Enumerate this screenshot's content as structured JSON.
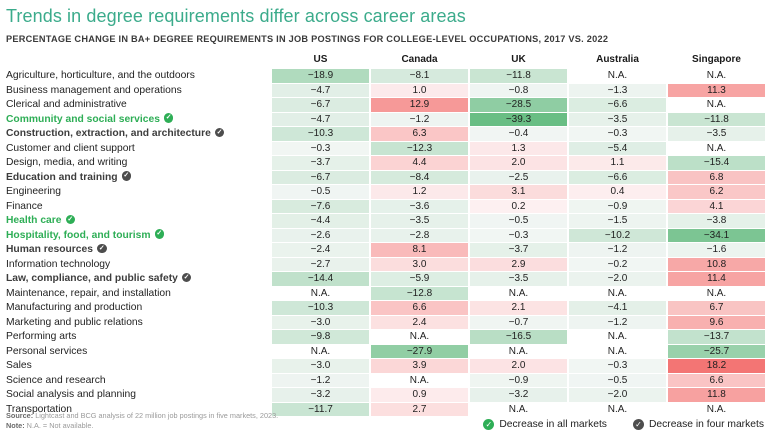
{
  "title": "Trends in degree requirements differ across career areas",
  "subtitle": "PERCENTAGE CHANGE IN BA+ DEGREE REQUIREMENTS IN JOB POSTINGS FOR COLLEGE-LEVEL OCCUPATIONS, 2017 VS. 2022",
  "table": {
    "columns": [
      "US",
      "Canada",
      "UK",
      "Australia",
      "Singapore"
    ],
    "rows": [
      {
        "label": "Agriculture, horticulture, and the outdoors",
        "badge": null,
        "values": [
          "-18.9",
          "-8.1",
          "-11.8",
          "N.A.",
          "N.A."
        ]
      },
      {
        "label": "Business management and operations",
        "badge": null,
        "values": [
          "-4.7",
          "1.0",
          "-0.8",
          "-1.3",
          "11.3"
        ]
      },
      {
        "label": "Clerical and administrative",
        "badge": null,
        "values": [
          "-6.7",
          "12.9",
          "-28.5",
          "-6.6",
          "N.A."
        ]
      },
      {
        "label": "Community and social services",
        "badge": "all",
        "values": [
          "-4.7",
          "-1.2",
          "-39.3",
          "-3.5",
          "-11.8"
        ]
      },
      {
        "label": "Construction, extraction, and architecture",
        "badge": "four",
        "values": [
          "-10.3",
          "6.3",
          "-0.4",
          "-0.3",
          "-3.5"
        ]
      },
      {
        "label": "Customer and client support",
        "badge": null,
        "values": [
          "-0.3",
          "-12.3",
          "1.3",
          "-5.4",
          "N.A."
        ]
      },
      {
        "label": "Design, media, and writing",
        "badge": null,
        "values": [
          "-3.7",
          "4.4",
          "2.0",
          "1.1",
          "-15.4"
        ]
      },
      {
        "label": "Education and training",
        "badge": "four",
        "values": [
          "-6.7",
          "-8.4",
          "-2.5",
          "-6.6",
          "6.8"
        ]
      },
      {
        "label": "Engineering",
        "badge": null,
        "values": [
          "-0.5",
          "1.2",
          "3.1",
          "0.4",
          "6.2"
        ]
      },
      {
        "label": "Finance",
        "badge": null,
        "values": [
          "-7.6",
          "-3.6",
          "0.2",
          "-0.9",
          "4.1"
        ]
      },
      {
        "label": "Health care",
        "badge": "all",
        "values": [
          "-4.4",
          "-3.5",
          "-0.5",
          "-1.5",
          "-3.8"
        ]
      },
      {
        "label": "Hospitality, food, and tourism",
        "badge": "all",
        "values": [
          "-2.6",
          "-2.8",
          "-0.3",
          "-10.2",
          "-34.1"
        ]
      },
      {
        "label": "Human resources",
        "badge": "four",
        "values": [
          "-2.4",
          "8.1",
          "-3.7",
          "-1.2",
          "-1.6"
        ]
      },
      {
        "label": "Information technology",
        "badge": null,
        "values": [
          "-2.7",
          "3.0",
          "2.9",
          "-0.2",
          "10.8"
        ]
      },
      {
        "label": "Law, compliance, and public safety",
        "badge": "four",
        "values": [
          "-14.4",
          "-5.9",
          "-3.5",
          "-2.0",
          "11.4"
        ]
      },
      {
        "label": "Maintenance, repair, and installation",
        "badge": null,
        "values": [
          "N.A.",
          "-12.8",
          "N.A.",
          "N.A.",
          "N.A."
        ]
      },
      {
        "label": "Manufacturing and production",
        "badge": null,
        "values": [
          "-10.3",
          "6.6",
          "2.1",
          "-4.1",
          "6.7"
        ]
      },
      {
        "label": "Marketing and public relations",
        "badge": null,
        "values": [
          "-3.0",
          "2.4",
          "-0.7",
          "-1.2",
          "9.6"
        ]
      },
      {
        "label": "Performing arts",
        "badge": null,
        "values": [
          "-9.8",
          "N.A.",
          "-16.5",
          "N.A.",
          "-13.7"
        ]
      },
      {
        "label": "Personal services",
        "badge": null,
        "values": [
          "N.A.",
          "-27.9",
          "N.A.",
          "N.A.",
          "-25.7"
        ]
      },
      {
        "label": "Sales",
        "badge": null,
        "values": [
          "-3.0",
          "3.9",
          "2.0",
          "-0.3",
          "18.2"
        ]
      },
      {
        "label": "Science and research",
        "badge": null,
        "values": [
          "-1.2",
          "N.A.",
          "-0.9",
          "-0.5",
          "6.6"
        ]
      },
      {
        "label": "Social analysis and planning",
        "badge": null,
        "values": [
          "-3.2",
          "0.9",
          "-3.2",
          "-2.0",
          "11.8"
        ]
      },
      {
        "label": "Transportation",
        "badge": null,
        "values": [
          "-11.7",
          "2.7",
          "N.A.",
          "N.A.",
          "N.A."
        ]
      }
    ]
  },
  "legend": [
    {
      "icon": "check-circle-green",
      "label": "Decrease in all markets"
    },
    {
      "icon": "check-circle-dark",
      "label": "Decrease in four markets"
    }
  ],
  "footer": {
    "source_label": "Source:",
    "source_text": " Lightcast and BCG analysis of 22 million job postings in five markets, 2023.",
    "note_label": "Note:",
    "note_text": " N.A. = Not available."
  },
  "colors": {
    "title_accent": "#3BAB8B",
    "all_markets_green": "#2EAE56",
    "four_markets_dark": "#4d4d4d",
    "cell_green_max": "#67BD82",
    "cell_green_min": "#F2F6F4",
    "cell_red_max": "#F3706E",
    "cell_red_min": "#FDF1F2",
    "cell_na": "#FFFFFF"
  },
  "chart_data": {
    "type": "heatmap",
    "title": "Trends in degree requirements differ across career areas",
    "subtitle": "Percentage change in BA+ degree requirements in job postings for college-level occupations, 2017 vs. 2022",
    "columns": [
      "US",
      "Canada",
      "UK",
      "Australia",
      "Singapore"
    ],
    "categories": [
      "Agriculture, horticulture, and the outdoors",
      "Business management and operations",
      "Clerical and administrative",
      "Community and social services",
      "Construction, extraction, and architecture",
      "Customer and client support",
      "Design, media, and writing",
      "Education and training",
      "Engineering",
      "Finance",
      "Health care",
      "Hospitality, food, and tourism",
      "Human resources",
      "Information technology",
      "Law, compliance, and public safety",
      "Maintenance, repair, and installation",
      "Manufacturing and production",
      "Marketing and public relations",
      "Performing arts",
      "Personal services",
      "Sales",
      "Science and research",
      "Social analysis and planning",
      "Transportation"
    ],
    "values": [
      [
        -18.9,
        -8.1,
        -11.8,
        null,
        null
      ],
      [
        -4.7,
        1.0,
        -0.8,
        -1.3,
        11.3
      ],
      [
        -6.7,
        12.9,
        -28.5,
        -6.6,
        null
      ],
      [
        -4.7,
        -1.2,
        -39.3,
        -3.5,
        -11.8
      ],
      [
        -10.3,
        6.3,
        -0.4,
        -0.3,
        -3.5
      ],
      [
        -0.3,
        -12.3,
        1.3,
        -5.4,
        null
      ],
      [
        -3.7,
        4.4,
        2.0,
        1.1,
        -15.4
      ],
      [
        -6.7,
        -8.4,
        -2.5,
        -6.6,
        6.8
      ],
      [
        -0.5,
        1.2,
        3.1,
        0.4,
        6.2
      ],
      [
        -7.6,
        -3.6,
        0.2,
        -0.9,
        4.1
      ],
      [
        -4.4,
        -3.5,
        -0.5,
        -1.5,
        -3.8
      ],
      [
        -2.6,
        -2.8,
        -0.3,
        -10.2,
        -34.1
      ],
      [
        -2.4,
        8.1,
        -3.7,
        -1.2,
        -1.6
      ],
      [
        -2.7,
        3.0,
        2.9,
        -0.2,
        10.8
      ],
      [
        -14.4,
        -5.9,
        -3.5,
        -2.0,
        11.4
      ],
      [
        null,
        -12.8,
        null,
        null,
        null
      ],
      [
        -10.3,
        6.6,
        2.1,
        -4.1,
        6.7
      ],
      [
        -3.0,
        2.4,
        -0.7,
        -1.2,
        9.6
      ],
      [
        -9.8,
        null,
        -16.5,
        null,
        -13.7
      ],
      [
        null,
        -27.9,
        null,
        null,
        -25.7
      ],
      [
        -3.0,
        3.9,
        2.0,
        -0.3,
        18.2
      ],
      [
        -1.2,
        null,
        -0.9,
        -0.5,
        6.6
      ],
      [
        -3.2,
        0.9,
        -3.2,
        -2.0,
        11.8
      ],
      [
        -11.7,
        2.7,
        null,
        null,
        null
      ]
    ],
    "annotations": {
      "decrease_in_all_markets": [
        "Community and social services",
        "Health care",
        "Hospitality, food, and tourism"
      ],
      "decrease_in_four_markets": [
        "Construction, extraction, and architecture",
        "Education and training",
        "Human resources",
        "Law, compliance, and public safety"
      ]
    },
    "color_scale": "negative=green (stronger decrease = darker green), positive=red (stronger increase = darker red), N.A.=white",
    "legend_position": "bottom-right",
    "grid": false
  }
}
